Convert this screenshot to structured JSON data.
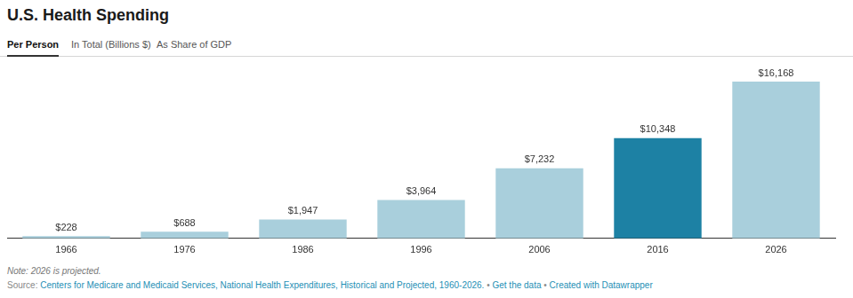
{
  "chart_data": {
    "type": "bar",
    "title": "U.S. Health Spending",
    "tabs": [
      "Per Person",
      "In Total (Billions $)",
      "As Share of GDP"
    ],
    "categories": [
      "1966",
      "1976",
      "1986",
      "1996",
      "2006",
      "2016",
      "2026"
    ],
    "values": [
      228,
      688,
      1947,
      3964,
      7232,
      10348,
      16168
    ],
    "value_labels": [
      "$228",
      "$688",
      "$1,947",
      "$3,964",
      "$7,232",
      "$10,348",
      "$16,168"
    ],
    "colors": [
      "#a9cfdc",
      "#a9cfdc",
      "#a9cfdc",
      "#a9cfdc",
      "#a9cfdc",
      "#1d81a4",
      "#a9cfdc"
    ],
    "ylim": [
      0,
      16168
    ],
    "data_labels": true,
    "tick_labels": "x",
    "grid": false,
    "note": "Note: 2026 is projected.",
    "source": {
      "prefix": "Source:",
      "separator": "•",
      "items": [
        "Centers for Medicare and Medicaid Services, National Health Expenditures, Historical and Projected, 1960-2026.",
        "Get the data",
        "Created with Datawrapper"
      ]
    }
  }
}
